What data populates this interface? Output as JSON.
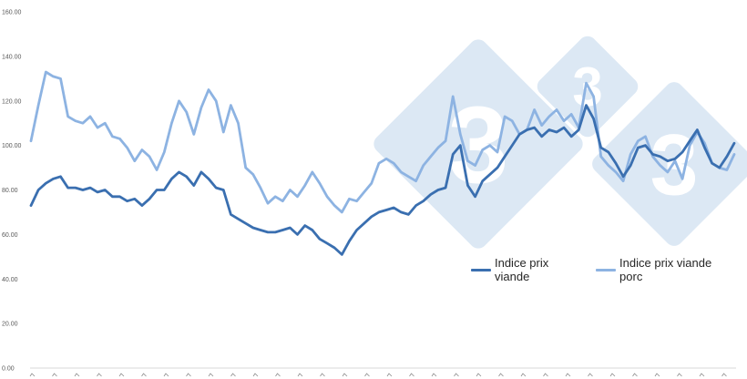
{
  "chart_data": {
    "type": "line",
    "title": "",
    "xlabel": "",
    "ylabel": "",
    "ylim": [
      0,
      160
    ],
    "y_ticks": [
      "0.00",
      "20.00",
      "40.00",
      "60.00",
      "80.00",
      "100.00",
      "120.00",
      "140.00",
      "160.00"
    ],
    "x_tick_count": 32,
    "x_tick_labels_note": "rotated labels truncated at bottom edge",
    "grid": false,
    "legend_position": "right-middle inside plot",
    "series": [
      {
        "name": "Indice prix viande",
        "color": "#3a6fb0",
        "values": [
          73,
          80,
          83,
          85,
          86,
          81,
          81,
          80,
          81,
          79,
          80,
          77,
          77,
          75,
          76,
          73,
          76,
          80,
          80,
          85,
          88,
          86,
          82,
          88,
          85,
          81,
          80,
          69,
          67,
          65,
          63,
          62,
          61,
          61,
          62,
          63,
          60,
          64,
          62,
          58,
          56,
          54,
          51,
          57,
          62,
          65,
          68,
          70,
          71,
          72,
          70,
          69,
          73,
          75,
          78,
          80,
          81,
          96,
          100,
          82,
          77,
          84,
          87,
          90,
          95,
          100,
          105,
          107,
          108,
          104,
          107,
          106,
          108,
          104,
          107,
          118,
          112,
          99,
          97,
          92,
          86,
          91,
          99,
          100,
          96,
          95,
          93,
          94,
          97,
          102,
          107,
          99,
          92,
          90,
          95,
          101
        ]
      },
      {
        "name": "Indice prix viande porc",
        "color": "#8db3e2",
        "values": [
          102,
          118,
          133,
          131,
          130,
          113,
          111,
          110,
          113,
          108,
          110,
          104,
          103,
          99,
          93,
          98,
          95,
          89,
          97,
          110,
          120,
          115,
          105,
          117,
          125,
          120,
          106,
          118,
          110,
          90,
          87,
          81,
          74,
          77,
          75,
          80,
          77,
          82,
          88,
          83,
          77,
          73,
          70,
          76,
          75,
          79,
          83,
          92,
          94,
          92,
          88,
          86,
          84,
          91,
          95,
          99,
          102,
          122,
          105,
          93,
          91,
          98,
          100,
          97,
          113,
          111,
          105,
          107,
          116,
          109,
          113,
          116,
          111,
          114,
          108,
          128,
          122,
          95,
          91,
          88,
          84,
          96,
          102,
          104,
          95,
          91,
          88,
          93,
          85,
          100,
          106,
          101,
          92,
          90,
          89,
          96
        ]
      }
    ]
  },
  "legend": {
    "item1": "Indice prix viande",
    "item2": "Indice prix viande porc"
  },
  "watermark": {
    "glyph": "3",
    "color": "#dce8f4"
  }
}
